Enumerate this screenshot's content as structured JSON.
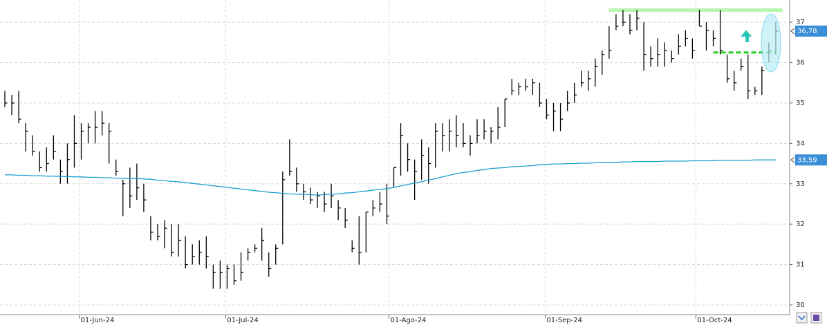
{
  "chart_data": {
    "type": "ohlc",
    "ylim": [
      29.76,
      37.55
    ],
    "yticks": [
      30,
      31,
      32,
      33,
      34,
      35,
      36,
      37
    ],
    "xlim": [
      -0.7,
      113
    ],
    "xticks": [
      {
        "value": 10.7,
        "label": "01-Jun-24"
      },
      {
        "value": 31.8,
        "label": "01-Jul-24"
      },
      {
        "value": 55.3,
        "label": "01-Ago-24"
      },
      {
        "value": 77.8,
        "label": "01-Sep-24"
      },
      {
        "value": 99.5,
        "label": "01-Oct-24"
      }
    ],
    "grid": true,
    "series": [
      {
        "type": "ohlc",
        "color": "#000000",
        "last_label": "36,78",
        "last_label_color": "#3a8fd8",
        "high": [
          35.3,
          35.2,
          35.3,
          34.5,
          34.2,
          33.8,
          33.9,
          34.2,
          33.6,
          34.0,
          34.7,
          34.5,
          34.5,
          34.8,
          34.8,
          34.5,
          33.6,
          33.1,
          33.4,
          33.5,
          33.0,
          32.2,
          32.0,
          32.1,
          32.0,
          32.0,
          31.7,
          31.5,
          31.6,
          31.7,
          31.0,
          31.1,
          31.0,
          31.0,
          31.3,
          31.4,
          31.5,
          31.9,
          31.3,
          31.5,
          33.3,
          34.1,
          33.4,
          33.0,
          32.9,
          32.8,
          32.8,
          33.0,
          32.6,
          32.4,
          31.6,
          32.2,
          32.3,
          32.6,
          32.8,
          33.0,
          33.4,
          34.5,
          34.0,
          33.6,
          34.1,
          33.9,
          34.5,
          34.5,
          34.6,
          34.7,
          34.5,
          34.2,
          34.6,
          34.6,
          34.4,
          34.9,
          35.1,
          35.6,
          35.5,
          35.6,
          35.6,
          35.5,
          35.1,
          35.0,
          35.0,
          35.3,
          35.5,
          35.8,
          35.8,
          36.1,
          36.3,
          36.9,
          37.2,
          37.3,
          37.2,
          37.3,
          37.0,
          36.4,
          36.6,
          36.5,
          36.3,
          36.7,
          36.8,
          36.6,
          37.3,
          37.0,
          36.8,
          37.3,
          36.2,
          35.8,
          36.1,
          36.2,
          35.4,
          35.9,
          36.5,
          37.0
        ],
        "low": [
          34.9,
          34.7,
          34.5,
          33.8,
          33.7,
          33.3,
          33.3,
          33.6,
          33.0,
          33.0,
          33.4,
          33.6,
          34.0,
          34.0,
          34.2,
          33.5,
          33.2,
          32.2,
          32.4,
          32.6,
          32.3,
          31.6,
          31.6,
          31.4,
          31.2,
          31.2,
          30.9,
          31.0,
          31.0,
          30.9,
          30.4,
          30.4,
          30.4,
          30.5,
          30.6,
          31.1,
          31.3,
          31.1,
          30.7,
          31.0,
          31.5,
          33.2,
          32.8,
          32.6,
          32.5,
          32.4,
          32.3,
          32.4,
          32.1,
          31.9,
          31.3,
          31.0,
          31.3,
          32.2,
          32.3,
          32.0,
          32.9,
          33.2,
          33.3,
          32.6,
          33.1,
          33.0,
          33.4,
          33.8,
          33.8,
          33.9,
          33.9,
          33.7,
          34.0,
          34.1,
          34.0,
          34.1,
          34.4,
          35.2,
          35.2,
          35.3,
          35.2,
          34.9,
          34.6,
          34.3,
          34.3,
          34.8,
          35.0,
          35.4,
          35.3,
          35.4,
          35.7,
          36.1,
          36.8,
          36.9,
          36.7,
          36.8,
          35.8,
          35.9,
          35.9,
          35.9,
          36.0,
          36.2,
          36.4,
          36.1,
          36.9,
          36.3,
          36.4,
          36.2,
          35.5,
          35.3,
          35.8,
          35.1,
          35.2,
          35.2,
          36.0,
          36.2
        ],
        "close": [
          35.0,
          35.0,
          34.6,
          34.3,
          33.8,
          33.4,
          33.5,
          33.8,
          33.3,
          33.6,
          34.0,
          34.3,
          34.4,
          34.4,
          34.5,
          34.3,
          33.3,
          33.0,
          32.7,
          32.9,
          32.6,
          31.8,
          31.7,
          31.9,
          31.3,
          31.6,
          31.0,
          31.2,
          31.3,
          31.2,
          30.8,
          30.8,
          30.9,
          30.6,
          30.8,
          31.3,
          31.4,
          31.6,
          30.9,
          31.4,
          33.1,
          33.3,
          33.0,
          32.8,
          32.6,
          32.7,
          32.5,
          32.7,
          32.4,
          32.1,
          31.4,
          31.3,
          32.3,
          32.4,
          32.5,
          32.2,
          33.4,
          34.2,
          33.6,
          33.3,
          33.7,
          33.5,
          34.3,
          34.2,
          34.3,
          34.2,
          34.0,
          34.0,
          34.2,
          34.3,
          34.3,
          34.4,
          35.1,
          35.3,
          35.4,
          35.4,
          35.5,
          35.0,
          34.7,
          34.8,
          34.6,
          35.0,
          35.2,
          35.5,
          35.6,
          35.9,
          36.2,
          36.3,
          36.9,
          37.0,
          36.8,
          37.1,
          36.2,
          36.1,
          36.2,
          36.3,
          36.1,
          36.4,
          36.6,
          36.3,
          36.9,
          36.8,
          36.6,
          36.3,
          35.6,
          35.5,
          35.9,
          35.3,
          35.3,
          35.8,
          36.3,
          36.78
        ]
      },
      {
        "type": "line",
        "color": "#1a9fd0",
        "last_label": "33,59",
        "last_label_color": "#3a8fd8",
        "values": [
          33.22,
          33.22,
          33.21,
          33.21,
          33.2,
          33.2,
          33.19,
          33.19,
          33.18,
          33.18,
          33.17,
          33.17,
          33.16,
          33.16,
          33.15,
          33.15,
          33.14,
          33.14,
          33.13,
          33.13,
          33.12,
          33.11,
          33.09,
          33.08,
          33.06,
          33.05,
          33.03,
          33.01,
          32.99,
          32.97,
          32.95,
          32.93,
          32.91,
          32.89,
          32.87,
          32.85,
          32.83,
          32.81,
          32.79,
          32.78,
          32.76,
          32.75,
          32.74,
          32.74,
          32.73,
          32.72,
          32.73,
          32.74,
          32.75,
          32.77,
          32.78,
          32.8,
          32.82,
          32.84,
          32.86,
          32.88,
          32.91,
          32.95,
          32.98,
          33.02,
          33.05,
          33.09,
          33.13,
          33.17,
          33.21,
          33.25,
          33.28,
          33.3,
          33.33,
          33.35,
          33.38,
          33.39,
          33.4,
          33.42,
          33.43,
          33.44,
          33.45,
          33.47,
          33.48,
          33.49,
          33.49,
          33.5,
          33.5,
          33.51,
          33.51,
          33.52,
          33.52,
          33.53,
          33.53,
          33.54,
          33.54,
          33.55,
          33.55,
          33.55,
          33.55,
          33.56,
          33.56,
          33.56,
          33.56,
          33.57,
          33.57,
          33.57,
          33.57,
          33.58,
          33.58,
          33.58,
          33.58,
          33.58,
          33.59,
          33.59,
          33.59,
          33.59
        ]
      }
    ],
    "levels": [
      {
        "value": 37.3,
        "from": 87,
        "to": 112,
        "color": "#b8f5b0",
        "style": "solid"
      },
      {
        "value": 36.25,
        "from": 102,
        "to": 111,
        "color": "#22cc22",
        "style": "dashed"
      }
    ]
  }
}
